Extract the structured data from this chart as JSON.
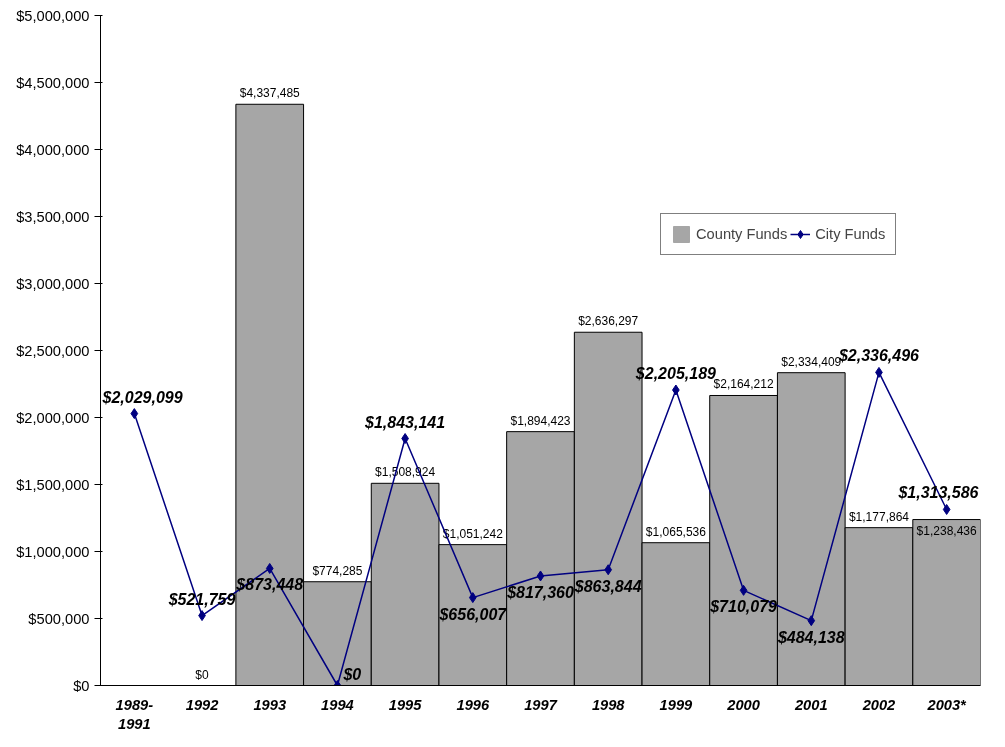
{
  "chart_data": {
    "type": "bar",
    "categories": [
      "1989-1991",
      "1992",
      "1993",
      "1994",
      "1995",
      "1996",
      "1997",
      "1998",
      "1999",
      "2000",
      "2001",
      "2002",
      "2003*"
    ],
    "series": [
      {
        "name": "County Funds",
        "color": "#a6a6a6",
        "values": [
          null,
          0,
          4337485,
          774285,
          1508924,
          1051242,
          1894423,
          2636297,
          1065536,
          2164212,
          2334409,
          1177864,
          1238436
        ],
        "value_labels": [
          null,
          "$0",
          "$4,337,485",
          "$774,285",
          "$1,508,924",
          "$1,051,242",
          "$1,894,423",
          "$2,636,297",
          "$1,065,536",
          "$2,164,212",
          "$2,334,409",
          "$1,177,864",
          "$1,238,436"
        ]
      },
      {
        "name": "City Funds",
        "type": "line",
        "color": "#000080",
        "marker": "diamond",
        "values": [
          2029099,
          521759,
          873448,
          0,
          1843141,
          656007,
          817360,
          863844,
          2205189,
          710079,
          484138,
          2336496,
          1313586
        ],
        "value_labels": [
          "$2,029,099",
          "$521,759",
          "$873,448",
          "$0",
          "$1,843,141",
          "$656,007",
          "$817,360",
          "$863,844",
          "$2,205,189",
          "$710,079",
          "$484,138",
          "$2,336,496",
          "$1,313,586"
        ]
      }
    ],
    "ylim": [
      0,
      5000000
    ],
    "yticks": [
      {
        "value": 0,
        "label": "$0"
      },
      {
        "value": 500000,
        "label": "$500,000"
      },
      {
        "value": 1000000,
        "label": "$1,000,000"
      },
      {
        "value": 1500000,
        "label": "$1,500,000"
      },
      {
        "value": 2000000,
        "label": "$2,000,000"
      },
      {
        "value": 2500000,
        "label": "$2,500,000"
      },
      {
        "value": 3000000,
        "label": "$3,000,000"
      },
      {
        "value": 3500000,
        "label": "$3,500,000"
      },
      {
        "value": 4000000,
        "label": "$4,000,000"
      },
      {
        "value": 4500000,
        "label": "$4,500,000"
      },
      {
        "value": 5000000,
        "label": "$5,000,000"
      }
    ],
    "grid": false,
    "legend": "right"
  }
}
